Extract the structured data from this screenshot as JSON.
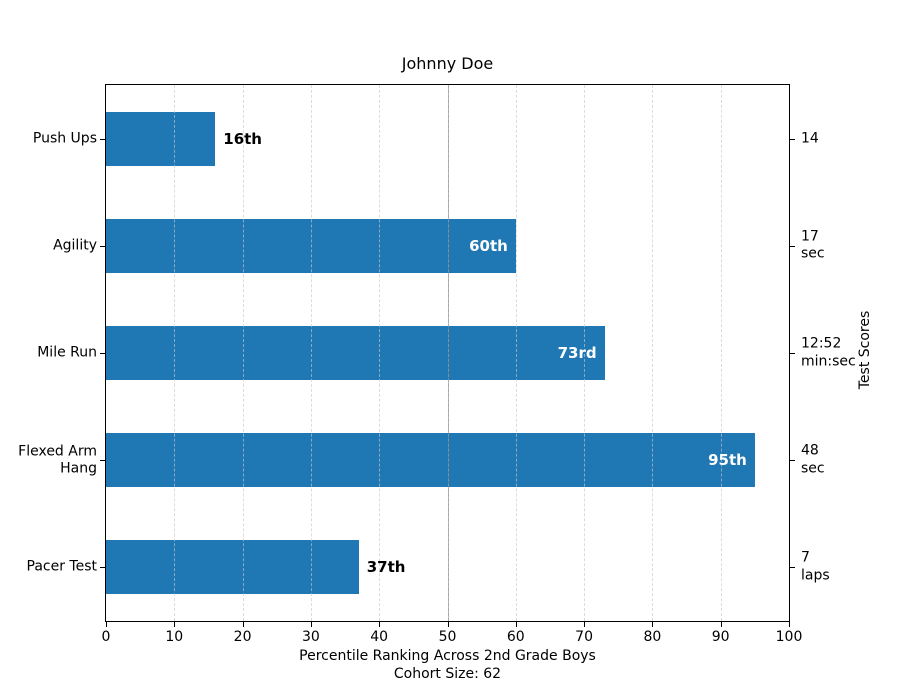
{
  "chart_data": {
    "type": "bar",
    "orientation": "horizontal",
    "title": "Johnny Doe",
    "xlabel": "Percentile Ranking Across 2nd Grade Boys",
    "xlabel_line2": "Cohort Size: 62",
    "right_axis_label": "Test Scores",
    "xlim": [
      0,
      100
    ],
    "xticks": [
      0,
      10,
      20,
      30,
      40,
      50,
      60,
      70,
      80,
      90,
      100
    ],
    "grid": "vertical dashed light-gray",
    "reference_line_x": 50,
    "bar_color": "#1f77b4",
    "inside_label_color": "#ffffff",
    "outside_label_color": "#000000",
    "categories": [
      "Push Ups",
      "Agility",
      "Mile Run",
      "Flexed Arm\nHang",
      "Pacer Test"
    ],
    "values": [
      16,
      60,
      73,
      95,
      37
    ],
    "bar_labels": [
      "16th",
      "60th",
      "73rd",
      "95th",
      "37th"
    ],
    "scores": [
      {
        "value": "14",
        "unit": ""
      },
      {
        "value": "17",
        "unit": "sec"
      },
      {
        "value": "12:52",
        "unit": "min:sec"
      },
      {
        "value": "48",
        "unit": "sec"
      },
      {
        "value": "7",
        "unit": "laps"
      }
    ]
  }
}
